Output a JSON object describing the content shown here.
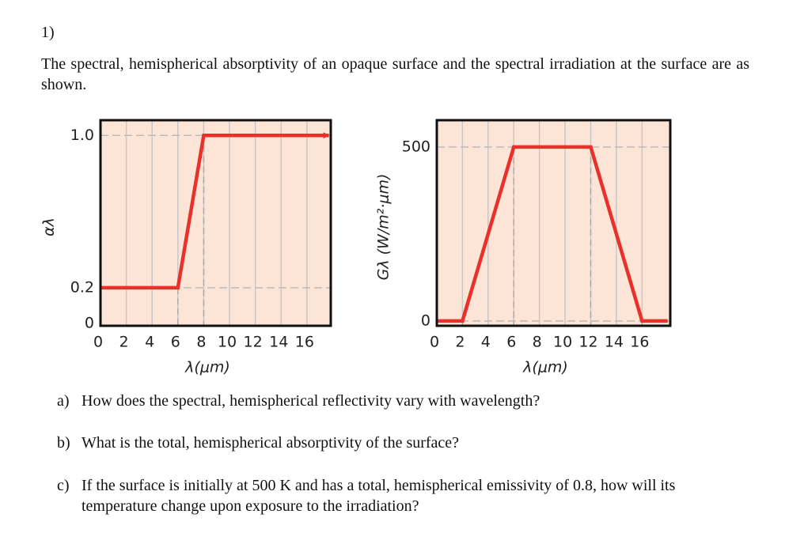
{
  "document": {
    "number": "1)",
    "intro": "The spectral, hemispherical absorptivity of an opaque surface and the spectral irradiation at the surface are as shown.",
    "questions": [
      {
        "label": "a)",
        "text": "How does the spectral, hemispherical reflectivity vary with wavelength?"
      },
      {
        "label": "b)",
        "text": "What is the total, hemispherical absorptivity of the surface?"
      },
      {
        "label": "c)",
        "text": "If the surface is initially at 500 K and has a total, hemispherical emissivity of 0.8, how will its temperature change upon exposure to the irradiation?"
      }
    ]
  },
  "chart_data": [
    {
      "type": "line",
      "x_label": "λ(μm)",
      "y_label": "αλ",
      "x": [
        0,
        6,
        8,
        17.7
      ],
      "values": [
        0.2,
        0.2,
        1.0,
        1.0
      ],
      "color": "#e8312a",
      "arrow_end": true,
      "xlim": [
        0,
        17.85
      ],
      "ylim": [
        0,
        1.08
      ],
      "xticks": [
        0,
        2,
        4,
        6,
        8,
        10,
        12,
        14,
        16
      ],
      "yticks": [
        0,
        0.2,
        {
          "value": 1,
          "label": "1.0"
        }
      ],
      "grid": true
    },
    {
      "type": "line",
      "x_label": "λ(μm)",
      "y_label": "Gλ (W/m²·μm)",
      "x": [
        0,
        2,
        6,
        12,
        16,
        18
      ],
      "values": [
        0,
        0,
        500,
        500,
        0,
        0
      ],
      "color": "#e8312a",
      "arrow_end": false,
      "xlim": [
        0,
        18.2
      ],
      "ylim": [
        -14,
        577
      ],
      "xticks": [
        0,
        2,
        4,
        6,
        8,
        10,
        12,
        14,
        16
      ],
      "yticks": [
        0,
        500
      ],
      "grid": true
    }
  ]
}
